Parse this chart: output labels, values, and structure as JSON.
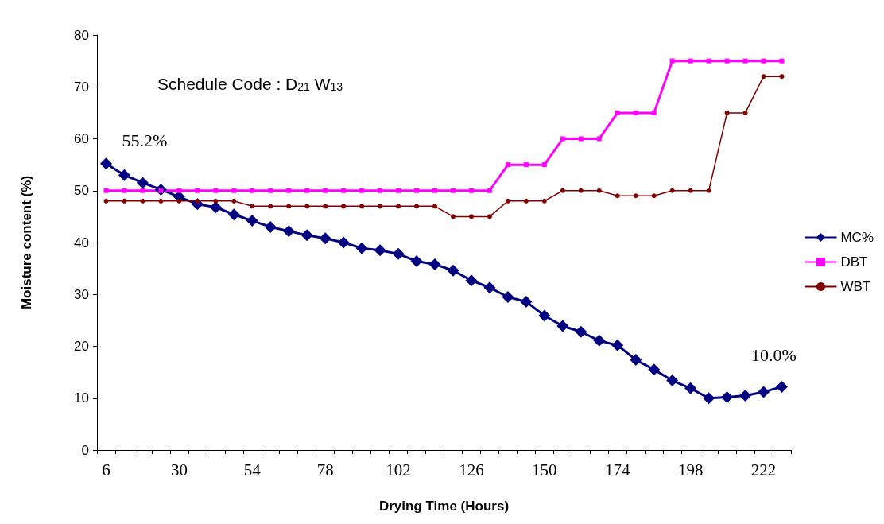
{
  "chart_data": {
    "type": "line",
    "xlabel": "Drying Time (Hours)",
    "ylabel": "Moisture content (%)",
    "categories": [
      "6",
      null,
      null,
      null,
      "30",
      null,
      null,
      null,
      "54",
      null,
      null,
      null,
      "78",
      null,
      null,
      null,
      "102",
      null,
      null,
      null,
      "126",
      null,
      null,
      null,
      "150",
      null,
      null,
      null,
      "174",
      null,
      null,
      null,
      "198",
      null,
      null,
      null,
      "222",
      null
    ],
    "series": [
      {
        "name": "MC%",
        "color": "#000080",
        "marker": "diamond",
        "values": [
          55.2,
          53.0,
          51.5,
          50.2,
          48.8,
          47.4,
          46.8,
          45.4,
          44.2,
          43.0,
          42.2,
          41.4,
          40.8,
          40.0,
          38.9,
          38.5,
          37.8,
          36.4,
          35.8,
          34.6,
          32.7,
          31.3,
          29.5,
          28.6,
          25.9,
          23.9,
          22.8,
          21.1,
          20.2,
          17.4,
          15.5,
          13.4,
          11.9,
          10.0,
          10.2,
          10.5,
          11.2,
          12.2
        ]
      },
      {
        "name": "DBT",
        "color": "#ff00ff",
        "marker": "square",
        "values": [
          50,
          50,
          50,
          50,
          50,
          50,
          50,
          50,
          50,
          50,
          50,
          50,
          50,
          50,
          50,
          50,
          50,
          50,
          50,
          50,
          50,
          50,
          55,
          55,
          55,
          60,
          60,
          60,
          65,
          65,
          65,
          75,
          75,
          75,
          75,
          75,
          75,
          75
        ]
      },
      {
        "name": "WBT",
        "color": "#800000",
        "marker": "circle",
        "values": [
          48,
          48,
          48,
          48,
          48,
          48,
          48,
          48,
          47,
          47,
          47,
          47,
          47,
          47,
          47,
          47,
          47,
          47,
          47,
          45,
          45,
          45,
          48,
          48,
          48,
          50,
          50,
          50,
          49,
          49,
          49,
          50,
          50,
          50,
          65,
          65,
          72,
          72
        ]
      }
    ],
    "annotations": [
      "Schedule Code : D$_{21}$ W$_{13}$",
      {
        "text": "55.2%",
        "x": "6",
        "y": 55.2
      },
      "10.0%"
    ],
    "ylim": [
      0,
      80
    ],
    "yticks": [
      0,
      10,
      20,
      30,
      40,
      50,
      60,
      70,
      80
    ],
    "grid": false,
    "legend": "right",
    "line_style": "solid"
  }
}
